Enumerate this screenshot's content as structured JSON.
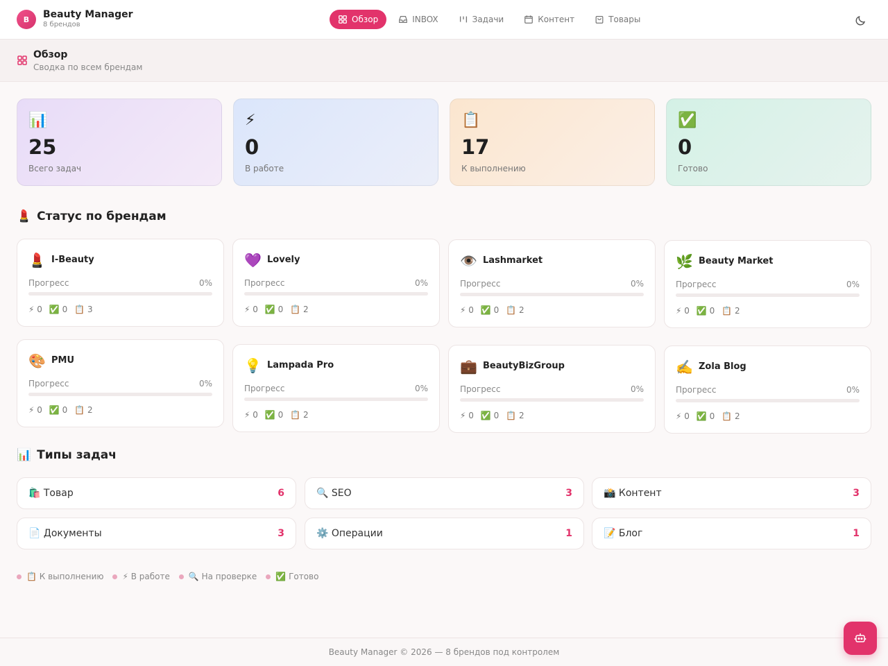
{
  "app": {
    "title": "Beauty Manager",
    "subtitle": "8 брендов",
    "avatar_letter": "B"
  },
  "nav": {
    "items": [
      {
        "label": "Обзор",
        "icon": "grid-icon",
        "active": true
      },
      {
        "label": "INBOX",
        "icon": "inbox-icon"
      },
      {
        "label": "Задачи",
        "icon": "kanban-icon"
      },
      {
        "label": "Контент",
        "icon": "calendar-icon"
      },
      {
        "label": "Товары",
        "icon": "shopping-bag-icon"
      }
    ],
    "theme_icon": "moon-icon"
  },
  "page": {
    "title": "Обзор",
    "subtitle": "Сводка по всем брендам"
  },
  "stats": [
    {
      "icon": "📊",
      "value": "25",
      "label": "Всего задач"
    },
    {
      "icon": "⚡",
      "value": "0",
      "label": "В работе"
    },
    {
      "icon": "📋",
      "value": "17",
      "label": "К выполнению"
    },
    {
      "icon": "✅",
      "value": "0",
      "label": "Готово"
    }
  ],
  "brands_section": {
    "emoji": "💄",
    "title": "Статус по брендам"
  },
  "brands": [
    {
      "icon": "💄",
      "name": "I-Beauty",
      "progress_label": "Прогресс",
      "progress": "0%",
      "in_work": "⚡ 0",
      "done": "✅ 0",
      "todo": "📋 3"
    },
    {
      "icon": "💜",
      "name": "Lovely",
      "progress_label": "Прогресс",
      "progress": "0%",
      "in_work": "⚡ 0",
      "done": "✅ 0",
      "todo": "📋 2"
    },
    {
      "icon": "👁️",
      "name": "Lashmarket",
      "progress_label": "Прогресс",
      "progress": "0%",
      "in_work": "⚡ 0",
      "done": "✅ 0",
      "todo": "📋 2"
    },
    {
      "icon": "🌿",
      "name": "Beauty Market",
      "progress_label": "Прогресс",
      "progress": "0%",
      "in_work": "⚡ 0",
      "done": "✅ 0",
      "todo": "📋 2"
    },
    {
      "icon": "🎨",
      "name": "PMU",
      "progress_label": "Прогресс",
      "progress": "0%",
      "in_work": "⚡ 0",
      "done": "✅ 0",
      "todo": "📋 2"
    },
    {
      "icon": "💡",
      "name": "Lampada Pro",
      "progress_label": "Прогресс",
      "progress": "0%",
      "in_work": "⚡ 0",
      "done": "✅ 0",
      "todo": "📋 2"
    },
    {
      "icon": "💼",
      "name": "BeautyBizGroup",
      "progress_label": "Прогресс",
      "progress": "0%",
      "in_work": "⚡ 0",
      "done": "✅ 0",
      "todo": "📋 2"
    },
    {
      "icon": "✍️",
      "name": "Zola Blog",
      "progress_label": "Прогресс",
      "progress": "0%",
      "in_work": "⚡ 0",
      "done": "✅ 0",
      "todo": "📋 2"
    }
  ],
  "types_section": {
    "emoji": "📊",
    "title": "Типы задач"
  },
  "task_types": [
    {
      "label": "🛍️ Товар",
      "count": "6"
    },
    {
      "label": "🔍 SEO",
      "count": "3"
    },
    {
      "label": "📸 Контент",
      "count": "3"
    },
    {
      "label": "📄 Документы",
      "count": "3"
    },
    {
      "label": "⚙️ Операции",
      "count": "1"
    },
    {
      "label": "📝 Блог",
      "count": "1"
    }
  ],
  "legend": [
    "📋 К выполнению",
    "⚡ В работе",
    "🔍 На проверке",
    "✅ Готово"
  ],
  "footer": {
    "text": "Beauty Manager © 2026 — 8 брендов под контролем"
  },
  "fab_icon": "robot-icon",
  "colors": {
    "accent": "#e2336b"
  }
}
